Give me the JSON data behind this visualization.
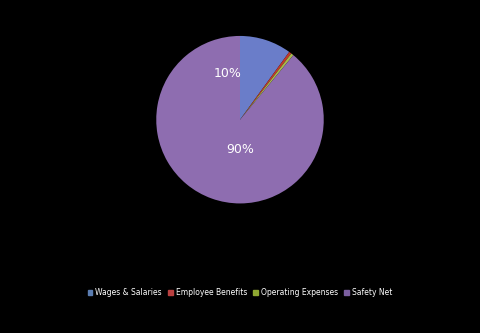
{
  "labels": [
    "Wages & Salaries",
    "Employee Benefits",
    "Operating Expenses",
    "Safety Net"
  ],
  "sizes": [
    10,
    0.5,
    0.5,
    89
  ],
  "colors": [
    "#6a7dc9",
    "#c0392b",
    "#a8b84b",
    "#8e6db0"
  ],
  "background_color": "#000000",
  "text_color": "#ffffff",
  "label_10pct": "10%",
  "label_90pct": "90%",
  "startangle": 90,
  "legend_colors": [
    "#5b7db1",
    "#b94040",
    "#8fa832",
    "#7b5fa0"
  ]
}
